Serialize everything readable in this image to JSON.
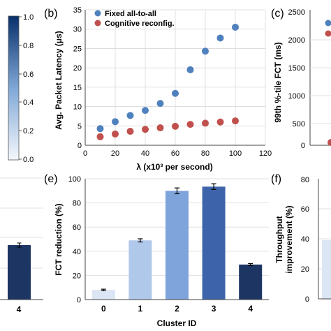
{
  "colorbar": {
    "ticks": [
      "1.0",
      "0.8",
      "0.6",
      "0.4",
      "0.2",
      "0.0"
    ]
  },
  "panels": {
    "b": {
      "letter": "(b)"
    },
    "c": {
      "letter": "(c)",
      "ylabel": "99th %-tile FCT (ms)",
      "yticks": [
        "2500",
        "2000",
        "1500",
        "1000",
        "500",
        "0"
      ]
    },
    "d": {
      "xtick": "4"
    },
    "e": {
      "letter": "(e)"
    },
    "f": {
      "letter": "(f)",
      "ylabel_line1": "Throughput",
      "ylabel_line2": "improvement (%)",
      "yticks": [
        "80",
        "60",
        "40",
        "20",
        "0"
      ]
    }
  },
  "chart_data": [
    {
      "id": "b",
      "type": "scatter",
      "xlabel": "λ (x10³ per second)",
      "ylabel": "Avg. Packet Latency (μs)",
      "xlim": [
        0,
        120
      ],
      "ylim": [
        0,
        35
      ],
      "xticks": [
        "0",
        "20",
        "40",
        "60",
        "80",
        "100",
        "120"
      ],
      "yticks": [
        "0",
        "5",
        "10",
        "15",
        "20",
        "25",
        "30",
        "35"
      ],
      "grid": true,
      "legend_position": "top-left",
      "series": [
        {
          "name": "Fixed all-to-all",
          "color": "#4f81bd",
          "x": [
            10,
            20,
            30,
            40,
            50,
            60,
            70,
            80,
            90,
            100
          ],
          "y": [
            4.3,
            6.1,
            7.7,
            9.0,
            10.8,
            13.4,
            19.5,
            24.3,
            27.7,
            30.5
          ]
        },
        {
          "name": "Cognitive reconfig.",
          "color": "#c0504d",
          "x": [
            10,
            20,
            30,
            40,
            50,
            60,
            70,
            80,
            90,
            100
          ],
          "y": [
            2.2,
            2.9,
            3.6,
            4.1,
            4.5,
            4.9,
            5.4,
            5.7,
            6.0,
            6.3
          ]
        }
      ]
    },
    {
      "id": "e",
      "type": "bar",
      "xlabel": "Cluster ID",
      "ylabel": "FCT reduction (%)",
      "categories": [
        "0",
        "1",
        "2",
        "3",
        "4"
      ],
      "values": [
        8,
        49,
        90,
        93.5,
        29
      ],
      "errors": [
        0.6,
        1.3,
        2.4,
        2.4,
        0.8
      ],
      "colors": [
        "#dbe5f4",
        "#b0c8ea",
        "#7fa3db",
        "#3d64aa",
        "#1d3563"
      ],
      "ylim": [
        0,
        100
      ],
      "yticks": [
        "0",
        "20",
        "40",
        "60",
        "80",
        "100"
      ],
      "grid": true
    }
  ]
}
